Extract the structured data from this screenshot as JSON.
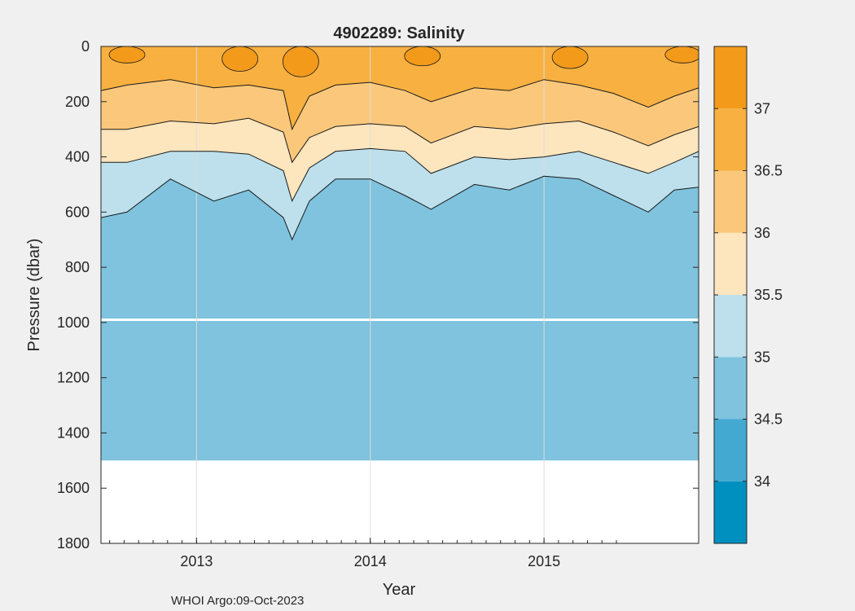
{
  "chart_data": {
    "type": "contour",
    "title": "4902289:  Salinity",
    "xlabel": "Year",
    "ylabel": "Pressure (dbar)",
    "footer": "WHOI Argo:09-Oct-2023",
    "x_range": [
      2012.45,
      2015.89
    ],
    "y_range": [
      0,
      1800
    ],
    "y_reversed": true,
    "grid": true,
    "x_ticks": [
      2013,
      2014,
      2015
    ],
    "y_ticks": [
      0,
      200,
      400,
      600,
      800,
      1000,
      1200,
      1400,
      1600,
      1800
    ],
    "colorbar": {
      "range": [
        33.5,
        37.5
      ],
      "ticks": [
        34,
        34.5,
        35,
        35.5,
        36,
        36.5,
        37
      ],
      "levels": [
        {
          "from": 33.5,
          "to": 34.0,
          "color": "#0090c0"
        },
        {
          "from": 34.0,
          "to": 34.5,
          "color": "#43a9d0"
        },
        {
          "from": 34.5,
          "to": 35.0,
          "color": "#7fc3de"
        },
        {
          "from": 35.0,
          "to": 35.5,
          "color": "#bde0ec"
        },
        {
          "from": 35.5,
          "to": 36.0,
          "color": "#fde5bd"
        },
        {
          "from": 36.0,
          "to": 36.5,
          "color": "#fbc87b"
        },
        {
          "from": 36.5,
          "to": 37.0,
          "color": "#f8b040"
        },
        {
          "from": 37.0,
          "to": 37.5,
          "color": "#f39a1a"
        }
      ]
    },
    "profile_bottom_dbar": 1500,
    "isohaline_depths": [
      {
        "salinity": 35.0,
        "x": [
          2012.45,
          2012.6,
          2012.85,
          2013.1,
          2013.3,
          2013.5,
          2013.55,
          2013.65,
          2013.8,
          2014.0,
          2014.2,
          2014.35,
          2014.6,
          2014.8,
          2015.0,
          2015.2,
          2015.4,
          2015.6,
          2015.75,
          2015.89
        ],
        "y": [
          620,
          600,
          480,
          560,
          520,
          620,
          700,
          560,
          480,
          480,
          540,
          590,
          500,
          520,
          470,
          480,
          540,
          600,
          520,
          510
        ]
      },
      {
        "salinity": 35.5,
        "x": [
          2012.45,
          2012.6,
          2012.85,
          2013.1,
          2013.3,
          2013.5,
          2013.55,
          2013.65,
          2013.8,
          2014.0,
          2014.2,
          2014.35,
          2014.6,
          2014.8,
          2015.0,
          2015.2,
          2015.4,
          2015.6,
          2015.75,
          2015.89
        ],
        "y": [
          420,
          420,
          380,
          380,
          390,
          450,
          560,
          440,
          380,
          370,
          380,
          460,
          400,
          410,
          400,
          380,
          420,
          460,
          420,
          380
        ]
      },
      {
        "salinity": 36.0,
        "x": [
          2012.45,
          2012.6,
          2012.85,
          2013.1,
          2013.3,
          2013.5,
          2013.55,
          2013.65,
          2013.8,
          2014.0,
          2014.2,
          2014.35,
          2014.6,
          2014.8,
          2015.0,
          2015.2,
          2015.4,
          2015.6,
          2015.75,
          2015.89
        ],
        "y": [
          300,
          300,
          270,
          280,
          260,
          310,
          420,
          330,
          290,
          280,
          290,
          350,
          290,
          300,
          280,
          270,
          310,
          360,
          320,
          290
        ]
      },
      {
        "salinity": 36.5,
        "x": [
          2012.45,
          2012.6,
          2012.85,
          2013.1,
          2013.3,
          2013.5,
          2013.55,
          2013.65,
          2013.8,
          2014.0,
          2014.2,
          2014.35,
          2014.6,
          2014.8,
          2015.0,
          2015.2,
          2015.4,
          2015.6,
          2015.75,
          2015.89
        ],
        "y": [
          160,
          140,
          120,
          150,
          140,
          160,
          300,
          180,
          140,
          130,
          160,
          200,
          150,
          160,
          120,
          140,
          170,
          220,
          180,
          150
        ]
      }
    ]
  }
}
